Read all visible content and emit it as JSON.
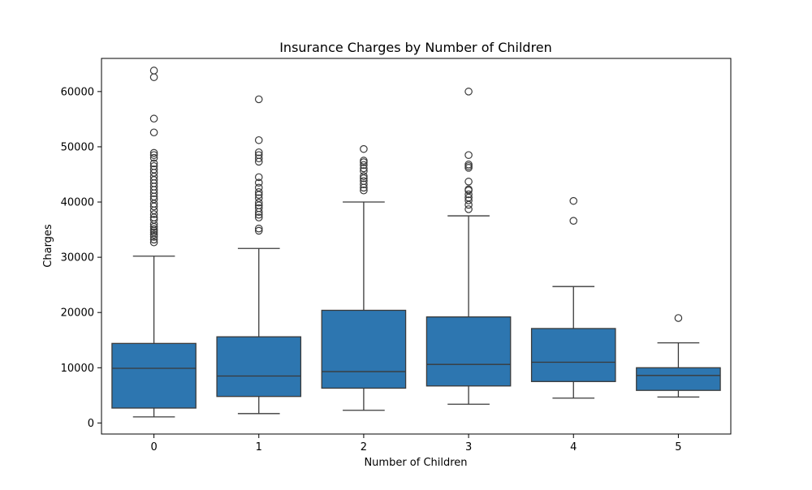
{
  "chart_data": {
    "type": "box",
    "title": "Insurance Charges by Number of Children",
    "xlabel": "Number of Children",
    "ylabel": "Charges",
    "ylim": [
      -2000,
      66000
    ],
    "yticks": [
      0,
      10000,
      20000,
      30000,
      40000,
      50000,
      60000
    ],
    "grid": false,
    "box_color": "#2d76b0",
    "line_color": "#3a3a3a",
    "categories": [
      "0",
      "1",
      "2",
      "3",
      "4",
      "5"
    ],
    "boxes": [
      {
        "category": "0",
        "whisker_low": 1100,
        "q1": 2700,
        "median": 9900,
        "q3": 14400,
        "whisker_high": 30200,
        "outliers": [
          32700,
          33200,
          33700,
          34100,
          34500,
          34800,
          35100,
          35500,
          36000,
          36800,
          37200,
          37800,
          38500,
          39200,
          39700,
          40500,
          41000,
          41600,
          42200,
          42800,
          43400,
          44000,
          44600,
          45300,
          45900,
          46500,
          47000,
          48000,
          48500,
          48900,
          52600,
          55100,
          62600,
          63800
        ]
      },
      {
        "category": "1",
        "whisker_low": 1700,
        "q1": 4800,
        "median": 8500,
        "q3": 15600,
        "whisker_high": 31600,
        "outliers": [
          34800,
          35200,
          37200,
          37700,
          38200,
          38900,
          39400,
          39900,
          40700,
          41300,
          41800,
          42600,
          43500,
          44500,
          47300,
          47900,
          48500,
          49000,
          51200,
          58600
        ]
      },
      {
        "category": "2",
        "whisker_low": 2300,
        "q1": 6300,
        "median": 9300,
        "q3": 20400,
        "whisker_high": 40000,
        "outliers": [
          42100,
          42600,
          43200,
          43800,
          44300,
          44700,
          45600,
          46100,
          46700,
          47200,
          47500,
          49600
        ]
      },
      {
        "category": "3",
        "whisker_low": 3400,
        "q1": 6700,
        "median": 10600,
        "q3": 19200,
        "whisker_high": 37500,
        "outliers": [
          38700,
          39500,
          40300,
          40800,
          41400,
          42100,
          42300,
          43700,
          46200,
          46500,
          46800,
          48500,
          60000
        ]
      },
      {
        "category": "4",
        "whisker_low": 4500,
        "q1": 7500,
        "median": 11000,
        "q3": 17100,
        "whisker_high": 24700,
        "outliers": [
          36600,
          40200
        ]
      },
      {
        "category": "5",
        "whisker_low": 4700,
        "q1": 5900,
        "median": 8600,
        "q3": 10000,
        "whisker_high": 14500,
        "outliers": [
          19000
        ]
      }
    ]
  }
}
